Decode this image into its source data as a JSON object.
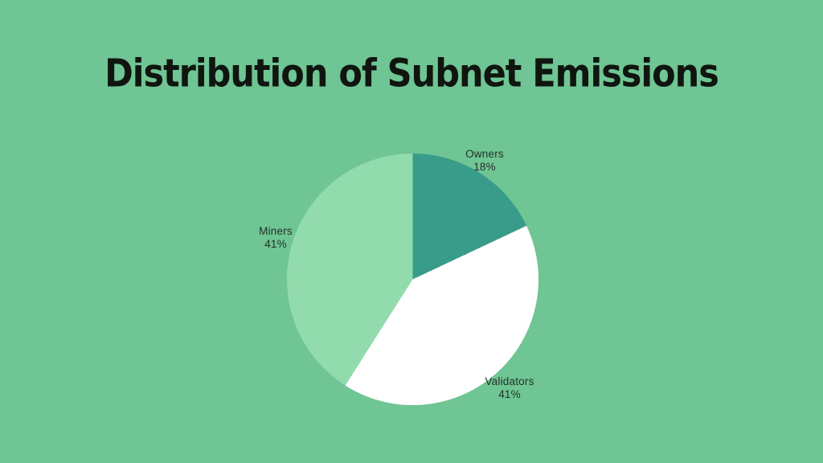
{
  "chart_data": {
    "type": "pie",
    "title": "Distribution of Subnet Emissions",
    "background_color": "#6FC593",
    "title_color": "#101510",
    "label_color": "#243029",
    "start_angle_deg": 0,
    "direction": "clockwise",
    "legend_position": "labels-outside-slices",
    "slices": [
      {
        "label": "Owners",
        "value": 18,
        "percent_text": "18%",
        "color": "#399C8B"
      },
      {
        "label": "Validators",
        "value": 41,
        "percent_text": "41%",
        "color": "#FFFFFF"
      },
      {
        "label": "Miners",
        "value": 41,
        "percent_text": "41%",
        "color": "#92DBAD"
      }
    ]
  }
}
